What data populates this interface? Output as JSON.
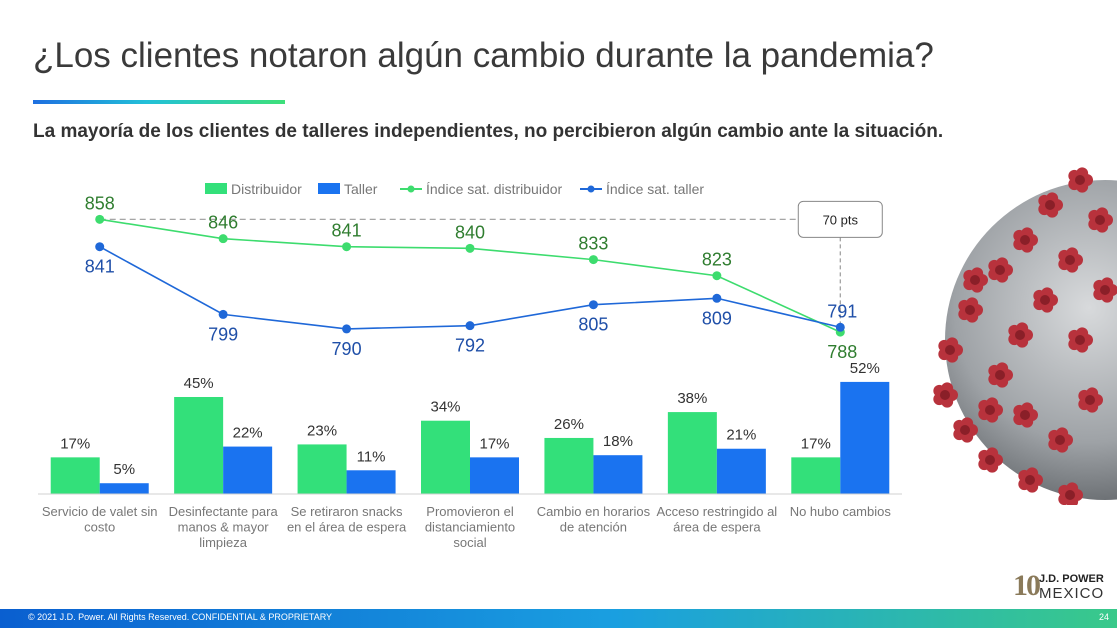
{
  "header": {
    "title": "¿Los clientes notaron algún cambio durante la pandemia?",
    "subtitle": "La mayoría de los clientes de talleres independientes, no percibieron algún cambio ante la situación."
  },
  "colors": {
    "green": "#33e07a",
    "blue": "#1a73f0",
    "green_line": "#3ddc6e",
    "blue_line": "#1f68d8",
    "green_label": "#2f7d2f",
    "blue_label": "#1f4fa8"
  },
  "chart_data": {
    "type": "bar",
    "legend": [
      "Distribuidor",
      "Taller",
      "Índice sat. distribuidor",
      "Índice sat. taller"
    ],
    "legend_position": "top",
    "categories": [
      [
        "Servicio de valet sin",
        "costo"
      ],
      [
        "Desinfectante para",
        "manos & mayor",
        "limpieza"
      ],
      [
        "Se retiraron snacks",
        "en el área de espera"
      ],
      [
        "Promovieron el",
        "distanciamiento",
        "social"
      ],
      [
        "Cambio en horarios",
        "de atención"
      ],
      [
        "Acceso restringido al",
        "área de espera"
      ],
      [
        "No hubo cambios"
      ]
    ],
    "series": [
      {
        "name": "Distribuidor",
        "type": "bar",
        "values": [
          17,
          45,
          23,
          34,
          26,
          38,
          17
        ],
        "labels": [
          "17%",
          "45%",
          "23%",
          "34%",
          "26%",
          "38%",
          "17%"
        ]
      },
      {
        "name": "Taller",
        "type": "bar",
        "values": [
          5,
          22,
          11,
          17,
          18,
          21,
          52
        ],
        "labels": [
          "5%",
          "22%",
          "11%",
          "17%",
          "18%",
          "21%",
          "52%"
        ]
      },
      {
        "name": "Índice sat. distribuidor",
        "type": "line",
        "values": [
          858,
          846,
          841,
          840,
          833,
          823,
          788
        ]
      },
      {
        "name": "Índice sat. taller",
        "type": "line",
        "values": [
          841,
          799,
          790,
          792,
          805,
          809,
          791
        ]
      }
    ],
    "bar_ylim": [
      0,
      55
    ],
    "line_ylim": [
      780,
      870
    ],
    "annotation": "70 pts"
  },
  "footer": {
    "copyright": "© 2021 J.D. Power. All Rights Reserved. CONFIDENTIAL & PROPRIETARY",
    "page": "24"
  },
  "logo": {
    "number": "10",
    "brand": "J.D. POWER",
    "region": "MEXICO"
  }
}
